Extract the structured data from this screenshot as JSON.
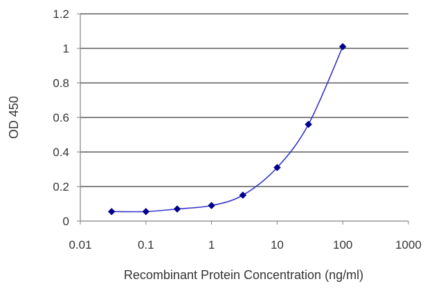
{
  "chart_data": {
    "type": "line",
    "xlabel": "Recombinant Protein Concentration (ng/ml)",
    "ylabel": "OD 450",
    "x_scale": "log",
    "xlim": [
      0.01,
      1000
    ],
    "ylim": [
      0,
      1.2
    ],
    "x_ticks": [
      "0.01",
      "0.1",
      "1",
      "10",
      "100",
      "1000"
    ],
    "y_ticks": [
      "0",
      "0.2",
      "0.4",
      "0.6",
      "0.8",
      "1",
      "1.2"
    ],
    "grid": "horizontal",
    "series": [
      {
        "x": [
          0.03,
          0.1,
          0.3,
          1,
          3,
          10,
          30,
          100
        ],
        "y": [
          0.055,
          0.055,
          0.07,
          0.09,
          0.15,
          0.31,
          0.56,
          1.01
        ],
        "color": "#00008B",
        "line_color": "#3333CC",
        "marker": "diamond"
      }
    ]
  }
}
